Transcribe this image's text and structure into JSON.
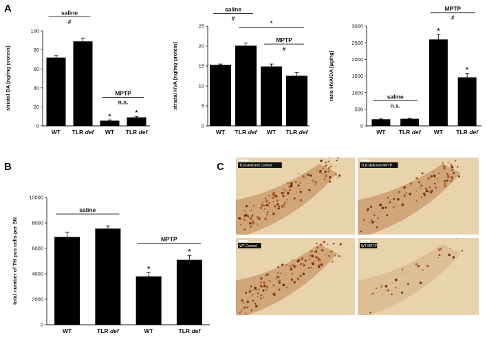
{
  "panels": {
    "A": "A",
    "B": "B",
    "C": "C"
  },
  "bar_color": "#000000",
  "micrograph_colors": {
    "background": "#e8d3ad",
    "tissue": "#b0652c",
    "dense": "#7c3213"
  },
  "chart_data": [
    {
      "id": "da",
      "type": "bar",
      "categories": [
        "WT",
        "TLR def",
        "WT",
        "TLR def"
      ],
      "category_parts": [
        [
          "WT",
          ""
        ],
        [
          "TLR ",
          "def"
        ],
        [
          "WT",
          ""
        ],
        [
          "TLR ",
          "def"
        ]
      ],
      "values": [
        72,
        89,
        5.5,
        9
      ],
      "errors": [
        2,
        3.5,
        0.8,
        1
      ],
      "ylabel": "striatal DA [ng/mg protein]",
      "ylim": [
        0,
        100
      ],
      "yticks": [
        0,
        20,
        40,
        60,
        80,
        100
      ],
      "stars": [
        false,
        false,
        true,
        true
      ],
      "annotations": [
        {
          "label": "saline",
          "mark": "#",
          "from": 0,
          "to": 1,
          "level": 115
        },
        {
          "label": "MPTP",
          "mark": "n.s.",
          "from": 2,
          "to": 3,
          "level": 30
        }
      ]
    },
    {
      "id": "hva",
      "type": "bar",
      "categories": [
        "WT",
        "TLR def",
        "WT",
        "TLR def"
      ],
      "category_parts": [
        [
          "WT",
          ""
        ],
        [
          "TLR ",
          "def"
        ],
        [
          "WT",
          ""
        ],
        [
          "TLR ",
          "def"
        ]
      ],
      "values": [
        15.3,
        20.1,
        14.9,
        12.6
      ],
      "errors": [
        0.2,
        0.7,
        0.6,
        0.8
      ],
      "ylabel": "striatal HVA [ng/mg protein]",
      "ylim": [
        0,
        25
      ],
      "yticks": [
        0,
        5,
        10,
        15,
        20,
        25
      ],
      "stars": [
        false,
        false,
        false,
        false
      ],
      "annotations": [
        {
          "label": "saline",
          "mark": "#",
          "from": 0,
          "to": 1,
          "level": 28.2
        },
        {
          "label": "",
          "mark": "*",
          "from": 1,
          "to": 3,
          "level": 24.7
        },
        {
          "label": "MPTP",
          "mark": "#",
          "from": 2,
          "to": 3,
          "level": 20.5
        }
      ]
    },
    {
      "id": "ratio",
      "type": "bar",
      "categories": [
        "WT",
        "TLR def",
        "WT",
        "TLR def"
      ],
      "category_parts": [
        [
          "WT",
          ""
        ],
        [
          "TLR ",
          "def"
        ],
        [
          "WT",
          ""
        ],
        [
          "TLR ",
          "def"
        ]
      ],
      "values": [
        200,
        215,
        2600,
        1460
      ],
      "errors": [
        10,
        10,
        150,
        120
      ],
      "ylabel": "ratio HVA/DA [µg/ng]",
      "ylim": [
        0,
        3000
      ],
      "yticks": [
        0,
        500,
        1000,
        1500,
        2000,
        2500,
        3000
      ],
      "stars": [
        false,
        false,
        true,
        true
      ],
      "annotations": [
        {
          "label": "saline",
          "mark": "n.s.",
          "from": 0,
          "to": 1,
          "level": 760
        },
        {
          "label": "MPTP",
          "mark": "#",
          "from": 2,
          "to": 3,
          "level": 3400
        }
      ]
    },
    {
      "id": "th",
      "type": "bar",
      "categories": [
        "WT",
        "TLR def",
        "WT",
        "TLR def"
      ],
      "category_parts": [
        [
          "WT",
          ""
        ],
        [
          "TLR ",
          "def"
        ],
        [
          "WT",
          ""
        ],
        [
          "TLR ",
          "def"
        ]
      ],
      "values": [
        6900,
        7550,
        3800,
        5100
      ],
      "errors": [
        380,
        220,
        300,
        350
      ],
      "ylabel": "total number of TH pos cells per SN",
      "ylim": [
        0,
        10000
      ],
      "yticks": [
        0,
        2000,
        4000,
        6000,
        8000,
        10000
      ],
      "stars": [
        false,
        false,
        true,
        true
      ],
      "annotations": [
        {
          "label": "saline",
          "mark": "",
          "from": 0,
          "to": 1,
          "level": 8700
        },
        {
          "label": "MPTP",
          "mark": "",
          "from": 2,
          "to": 3,
          "level": 6400
        }
      ]
    }
  ],
  "micrographs": [
    {
      "label": "TLR-deficient Control",
      "density": "high"
    },
    {
      "label": "TLR-deficient MPTP",
      "density": "medium"
    },
    {
      "label": "WT Control",
      "density": "high"
    },
    {
      "label": "WT MPTP",
      "density": "low"
    }
  ]
}
